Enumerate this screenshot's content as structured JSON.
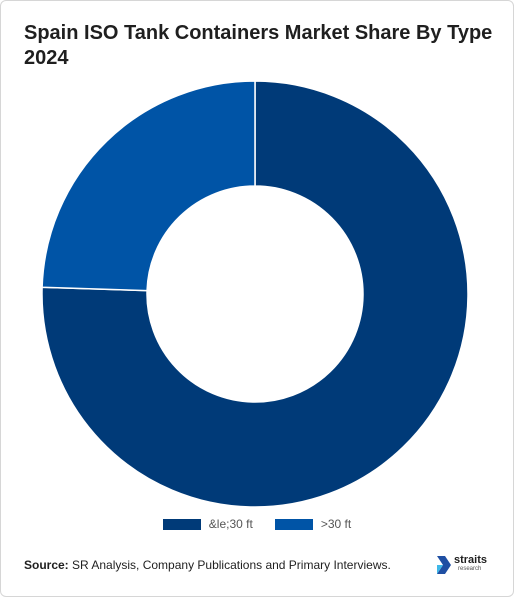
{
  "title": "Spain ISO Tank Containers Market Share By Type 2024",
  "chart_data": {
    "type": "donut",
    "title": "Spain ISO Tank Containers Market Share By Type 2024",
    "categories": [
      "&le;30 ft",
      ">30 ft"
    ],
    "values": [
      75.5,
      24.5
    ],
    "colors": [
      "#003a78",
      "#0054a6"
    ],
    "legend_position": "bottom"
  },
  "footer": {
    "source_label": "Source:",
    "source_text": " SR Analysis, Company Publications and Primary Interviews."
  },
  "logo": {
    "word": "straits",
    "sub": "research"
  }
}
